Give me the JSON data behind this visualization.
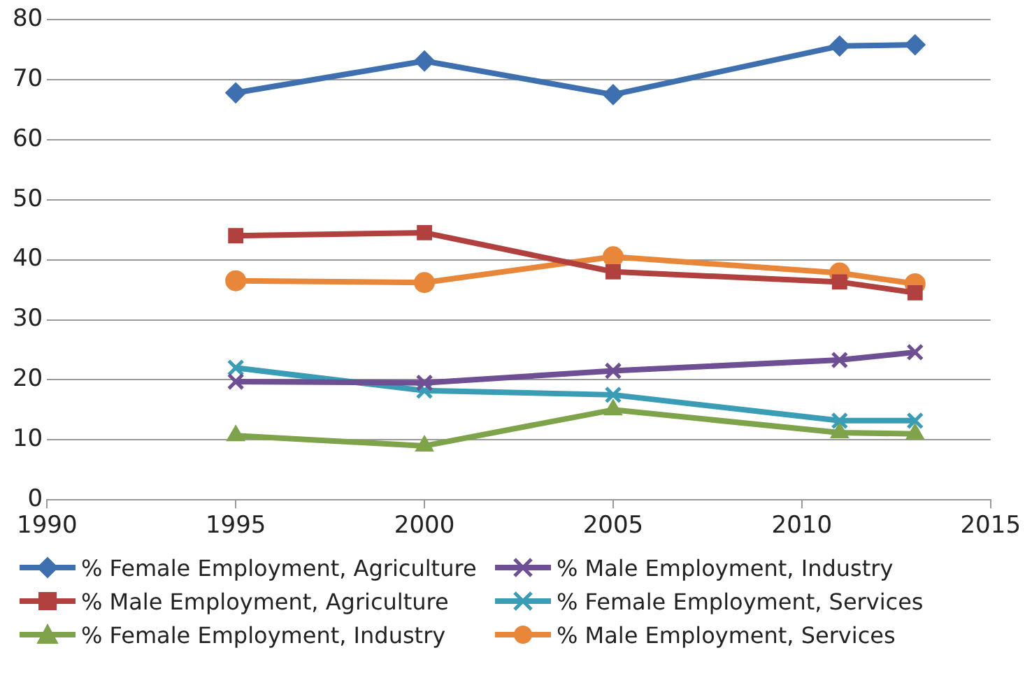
{
  "chart_data": {
    "type": "line",
    "x": [
      1995,
      2000,
      2005,
      2011,
      2013
    ],
    "xlim": [
      1990,
      2015
    ],
    "xticks": [
      1990,
      1995,
      2000,
      2005,
      2010,
      2015
    ],
    "ylim": [
      0,
      80
    ],
    "yticks": [
      0,
      10,
      20,
      30,
      40,
      50,
      60,
      70,
      80
    ],
    "grid": "y",
    "legend": "bottom",
    "line_style": "solid",
    "series": [
      {
        "name": "% Female Employment, Agriculture",
        "color": "#3e70b0",
        "marker": "diamond",
        "values": [
          67.8,
          73.1,
          67.5,
          75.6,
          75.8
        ]
      },
      {
        "name": "% Male Employment, Industry",
        "color": "#6f4f93",
        "marker": "cross",
        "values": [
          19.7,
          19.5,
          21.5,
          23.3,
          24.6
        ]
      },
      {
        "name": "% Male Employment, Agriculture",
        "color": "#b0413e",
        "marker": "square",
        "values": [
          44,
          44.5,
          38,
          36.3,
          34.5
        ]
      },
      {
        "name": "% Female Employment, Services",
        "color": "#3a9cb5",
        "marker": "cross",
        "values": [
          22,
          18.2,
          17.5,
          13.2,
          13.2
        ]
      },
      {
        "name": "% Female Employment, Industry",
        "color": "#7ea34b",
        "marker": "triangle",
        "values": [
          10.7,
          9,
          15,
          11.2,
          11
        ]
      },
      {
        "name": "% Male Employment, Services",
        "color": "#e8873a",
        "marker": "circle",
        "values": [
          36.5,
          36.2,
          40.5,
          37.8,
          36
        ]
      }
    ]
  }
}
